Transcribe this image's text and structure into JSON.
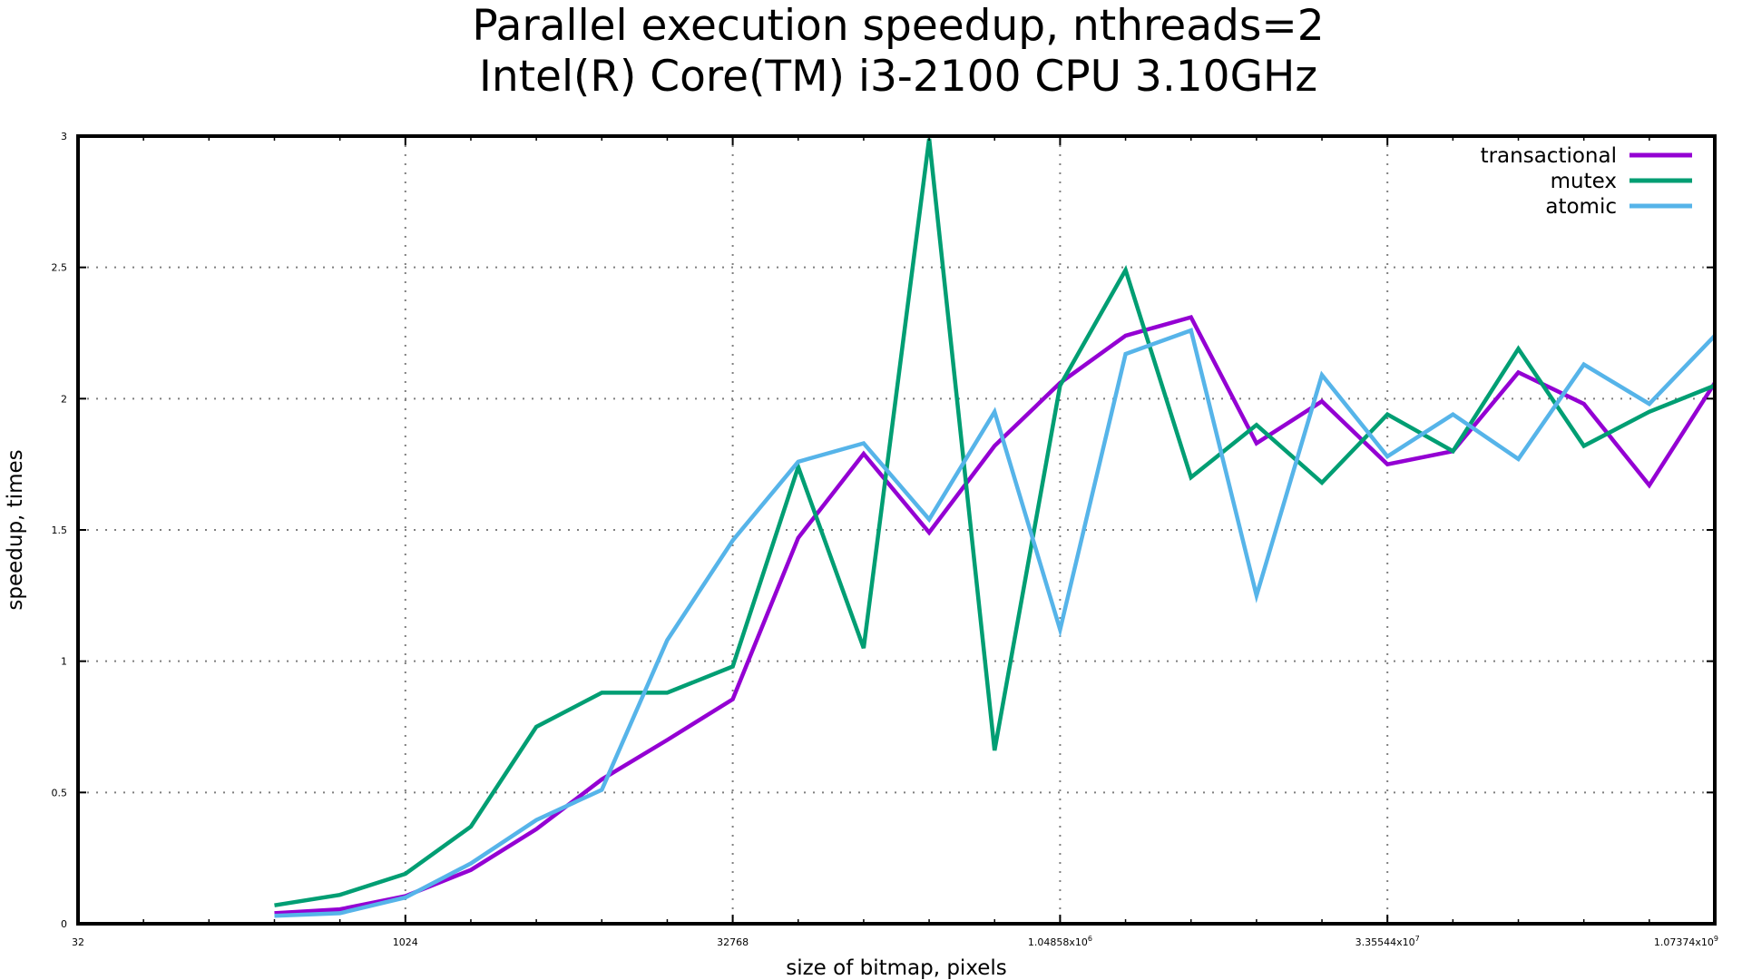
{
  "chart_data": {
    "type": "line",
    "title": [
      "Parallel execution speedup, nthreads=2",
      "Intel(R) Core(TM) i3-2100 CPU 3.10GHz"
    ],
    "xlabel": "size of bitmap, pixels",
    "ylabel": "speedup, times",
    "x_scale": "log2",
    "xlim": [
      32,
      1073741824
    ],
    "ylim": [
      0,
      3
    ],
    "grid": true,
    "legend_position": "top-right",
    "x_ticks": [
      {
        "value": 32,
        "label": "32"
      },
      {
        "value": 1024,
        "label": "1024"
      },
      {
        "value": 32768,
        "label": "32768"
      },
      {
        "value": 1048576,
        "label": "1.04858x10^6"
      },
      {
        "value": 33554432,
        "label": "3.35544x10^7"
      },
      {
        "value": 1073741824,
        "label": "1.07374x10^9"
      }
    ],
    "y_ticks": [
      {
        "value": 0,
        "label": "0"
      },
      {
        "value": 0.5,
        "label": "0.5"
      },
      {
        "value": 1,
        "label": "1"
      },
      {
        "value": 1.5,
        "label": "1.5"
      },
      {
        "value": 2,
        "label": "2"
      },
      {
        "value": 2.5,
        "label": "2.5"
      },
      {
        "value": 3,
        "label": "3"
      }
    ],
    "x": [
      256,
      512,
      1024,
      2048,
      4096,
      8192,
      16384,
      32768,
      65536,
      131072,
      262144,
      524288,
      1048576,
      2097152,
      4194304,
      8388608,
      16777216,
      33554432,
      67108864,
      134217728,
      268435456,
      536870912,
      1073741824
    ],
    "series": [
      {
        "name": "transactional",
        "color": "#9400d3",
        "values": [
          0.04,
          0.055,
          0.105,
          0.205,
          0.36,
          0.55,
          0.7,
          0.855,
          1.47,
          1.79,
          1.49,
          1.82,
          2.06,
          2.24,
          2.31,
          1.83,
          1.99,
          1.75,
          1.8,
          2.1,
          1.98,
          1.67,
          2.06
        ]
      },
      {
        "name": "mutex",
        "color": "#009e73",
        "values": [
          0.07,
          0.11,
          0.19,
          0.37,
          0.75,
          0.88,
          0.88,
          0.98,
          1.74,
          1.05,
          2.99,
          0.66,
          2.05,
          2.49,
          1.7,
          1.9,
          1.68,
          1.94,
          1.8,
          2.19,
          1.82,
          1.95,
          2.05
        ]
      },
      {
        "name": "atomic",
        "color": "#56b4e9",
        "values": [
          0.03,
          0.04,
          0.1,
          0.23,
          0.395,
          0.51,
          1.08,
          1.46,
          1.76,
          1.83,
          1.54,
          1.95,
          1.12,
          2.17,
          2.26,
          1.25,
          2.09,
          1.78,
          1.94,
          1.77,
          2.13,
          1.98,
          2.24
        ]
      }
    ]
  }
}
